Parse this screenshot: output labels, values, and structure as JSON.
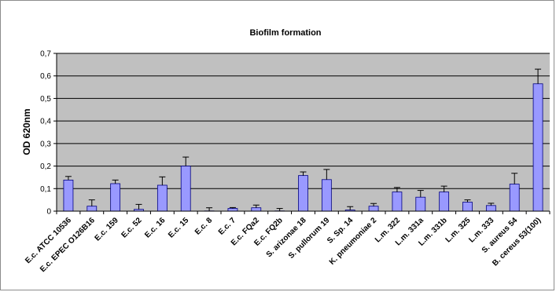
{
  "chart_data": {
    "type": "bar",
    "title": "Biofilm formation",
    "xlabel": "",
    "ylabel": "OD 620nm",
    "ylim": [
      0,
      0.7
    ],
    "yticks": [
      "0",
      "0,1",
      "0,2",
      "0,3",
      "0,4",
      "0,5",
      "0,6",
      "0,7"
    ],
    "grid": true,
    "legend": "none",
    "categories": [
      "E.c. ATCC 10536",
      "E.c. EPEC O126B16",
      "E.c. 159",
      "E.c. 52",
      "E.c. 16",
      "E.c. 15",
      "E.c. 8",
      "E.c. 7",
      "E.c. FQa2",
      "E.c. FQ2b",
      "S. arizonae 18",
      "S. pullorum 19",
      "S. Sp. 14",
      "K. pneumoniae 2",
      "L.m. 322",
      "L.m. 331a",
      "L.m. 331b",
      "L.m. 325",
      "L.m. 333",
      "S. aureus 54",
      "B. cereus 53(100)"
    ],
    "values": [
      0.138,
      0.022,
      0.122,
      0.008,
      0.115,
      0.2,
      0.001,
      0.012,
      0.015,
      0.001,
      0.158,
      0.14,
      0.005,
      0.022,
      0.085,
      0.062,
      0.085,
      0.04,
      0.025,
      0.12,
      0.565
    ],
    "errors": [
      0.016,
      0.028,
      0.016,
      0.022,
      0.037,
      0.04,
      0.014,
      0.004,
      0.012,
      0.011,
      0.016,
      0.045,
      0.015,
      0.012,
      0.02,
      0.03,
      0.026,
      0.01,
      0.01,
      0.048,
      0.065
    ],
    "colors": {
      "bar_fill": "#9999ff",
      "bar_stroke": "#000080",
      "plot_bg": "#c0c0c0",
      "gridline": "#000000"
    }
  }
}
